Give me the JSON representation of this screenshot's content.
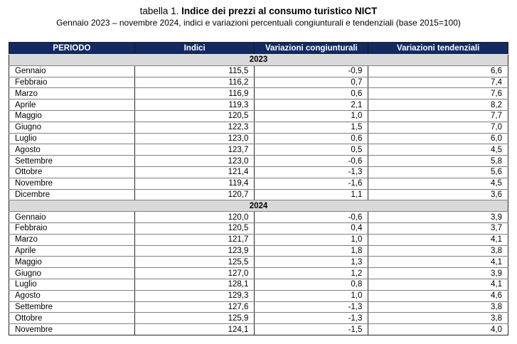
{
  "title": {
    "prefix": "tabella 1. ",
    "main": "Indice dei prezzi al consumo turistico NICT"
  },
  "subtitle": "Gennaio 2023 – novembre 2024, indici e variazioni percentuali congiunturali e tendenziali (base 2015=100)",
  "colors": {
    "header_background": "#122A60",
    "header_text": "#FFFFFF",
    "section_row_background": "#D9D9D9",
    "row_border": "#808080",
    "outer_border": "#262626"
  },
  "table": {
    "columns": [
      "PERIODO",
      "Indici",
      "Variazioni congiunturali",
      "Variazioni tendenziali"
    ],
    "sections": [
      {
        "year": "2023",
        "rows": [
          [
            "Gennaio",
            "115,5",
            "-0,9",
            "6,6"
          ],
          [
            "Febbraio",
            "116,2",
            "0,7",
            "7,4"
          ],
          [
            "Marzo",
            "116,9",
            "0,6",
            "7,6"
          ],
          [
            "Aprile",
            "119,3",
            "2,1",
            "8,2"
          ],
          [
            "Maggio",
            "120,5",
            "1,0",
            "7,7"
          ],
          [
            "Giugno",
            "122,3",
            "1,5",
            "7,0"
          ],
          [
            "Luglio",
            "123,0",
            "0,6",
            "6,0"
          ],
          [
            "Agosto",
            "123,7",
            "0,5",
            "4,5"
          ],
          [
            "Settembre",
            "123,0",
            "-0,6",
            "5,8"
          ],
          [
            "Ottobre",
            "121,4",
            "-1,3",
            "5,6"
          ],
          [
            "Novembre",
            "119,4",
            "-1,6",
            "4,5"
          ],
          [
            "Dicembre",
            "120,7",
            "1,1",
            "3,6"
          ]
        ]
      },
      {
        "year": "2024",
        "rows": [
          [
            "Gennaio",
            "120,0",
            "-0,6",
            "3,9"
          ],
          [
            "Febbraio",
            "120,5",
            "0,4",
            "3,7"
          ],
          [
            "Marzo",
            "121,7",
            "1,0",
            "4,1"
          ],
          [
            "Aprile",
            "123,9",
            "1,8",
            "3,8"
          ],
          [
            "Maggio",
            "125,5",
            "1,3",
            "4,1"
          ],
          [
            "Giugno",
            "127,0",
            "1,2",
            "3,9"
          ],
          [
            "Luglio",
            "128,1",
            "0,8",
            "4,1"
          ],
          [
            "Agosto",
            "129,3",
            "1,0",
            "4,6"
          ],
          [
            "Settembre",
            "127,6",
            "-1,3",
            "3,8"
          ],
          [
            "Ottobre",
            "125,9",
            "-1,3",
            "3,8"
          ],
          [
            "Novembre",
            "124,1",
            "-1,5",
            "4,0"
          ]
        ]
      }
    ]
  }
}
